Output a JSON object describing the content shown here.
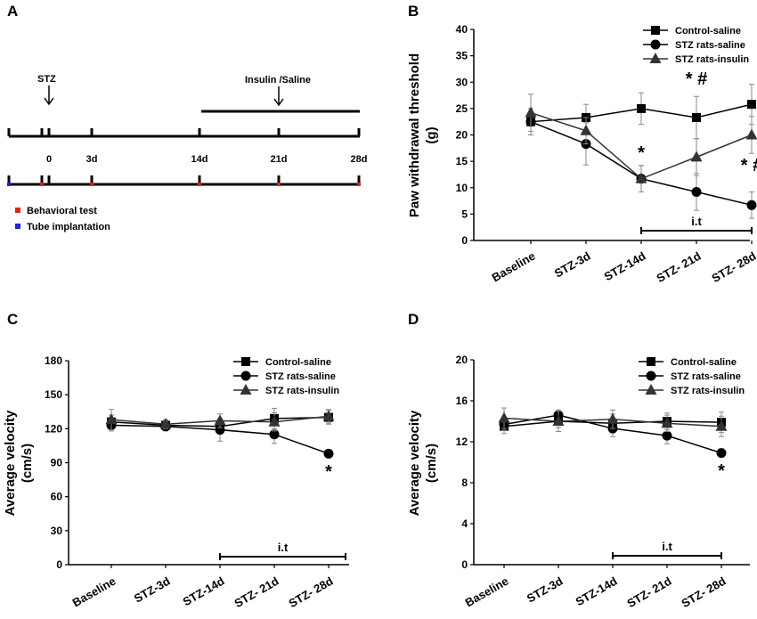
{
  "panels": {
    "A": {
      "letter": "A",
      "drug_label": "STZ",
      "treatment_label": "Insulin /Saline",
      "day_labels": [
        "0",
        "3d",
        "14d",
        "21d",
        "28d"
      ],
      "legend": [
        {
          "label": "Behavioral test",
          "color": "#e02020"
        },
        {
          "label": "Tube implantation",
          "color": "#2020e0"
        }
      ]
    },
    "B": {
      "letter": "B"
    },
    "C": {
      "letter": "C"
    },
    "D": {
      "letter": "D"
    }
  },
  "colors": {
    "series": "#000000",
    "insulin": "#333333",
    "errorbar": "#888888"
  },
  "chart_data": [
    {
      "id": "B",
      "type": "line",
      "ylabel": "Paw withdrawal threshold (g)",
      "ylabel_lines": [
        "Paw withdrawal threshold",
        "(g)"
      ],
      "ylim": [
        0,
        40
      ],
      "yticks": [
        0,
        5,
        10,
        15,
        20,
        25,
        30,
        35,
        40
      ],
      "categories": [
        "Baseline",
        "STZ-3d",
        "STZ-14d",
        "STZ- 21d",
        "STZ- 28d"
      ],
      "series": [
        {
          "name": "Control-saline",
          "marker": "square",
          "values": [
            22.5,
            23.3,
            25.0,
            23.3,
            25.8
          ],
          "errors": [
            2.5,
            2.5,
            3.0,
            4.0,
            3.8
          ]
        },
        {
          "name": "STZ rats-saline",
          "marker": "circle",
          "values": [
            22.5,
            18.3,
            11.7,
            9.2,
            6.7
          ],
          "errors": [
            2.5,
            4.0,
            2.5,
            3.5,
            2.5
          ]
        },
        {
          "name": "STZ rats-insulin",
          "marker": "triangle",
          "values": [
            24.2,
            20.8,
            11.7,
            15.8,
            20.0
          ],
          "errors": [
            3.5,
            2.5,
            2.5,
            3.5,
            3.5
          ]
        }
      ],
      "bracket_label": "i.t",
      "bracket_range": [
        "STZ-14d",
        "STZ- 28d"
      ],
      "annotations": [
        {
          "text": "*",
          "category": "STZ-14d",
          "y": 15.5
        },
        {
          "text": "* #",
          "category": "STZ- 21d",
          "y": 29.5
        },
        {
          "text": "* #",
          "category": "STZ- 28d",
          "y": 13.2
        }
      ]
    },
    {
      "id": "C",
      "type": "line",
      "ylabel": "Average velocity (cm/s)",
      "ylabel_lines": [
        "Average velocity",
        "(cm/s)"
      ],
      "ylim": [
        0,
        180
      ],
      "yticks": [
        0,
        30,
        60,
        90,
        120,
        150,
        180
      ],
      "categories": [
        "Baseline",
        "STZ-3d",
        "STZ-14d",
        "STZ- 21d",
        "STZ- 28d"
      ],
      "series": [
        {
          "name": "Control-saline",
          "marker": "square",
          "values": [
            126,
            123,
            122,
            129,
            130
          ],
          "errors": [
            6,
            4,
            6,
            9,
            6
          ]
        },
        {
          "name": "STZ rats-saline",
          "marker": "circle",
          "values": [
            123,
            122,
            119,
            115,
            98
          ],
          "errors": [
            5,
            4,
            10,
            8,
            3
          ]
        },
        {
          "name": "STZ rats-insulin",
          "marker": "triangle",
          "values": [
            128,
            124,
            127,
            126,
            131
          ],
          "errors": [
            9,
            4,
            6,
            8,
            6
          ]
        }
      ],
      "bracket_label": "i.t",
      "bracket_range": [
        "STZ-14d",
        "STZ- 28d"
      ],
      "annotations": [
        {
          "text": "*",
          "category": "STZ- 28d",
          "y": 77
        }
      ]
    },
    {
      "id": "D",
      "type": "line",
      "ylabel": "Average velocity (cm/s)",
      "ylabel_lines": [
        "Average velocity",
        "(cm/s)"
      ],
      "ylim": [
        0,
        20
      ],
      "yticks": [
        0,
        4,
        8,
        12,
        16,
        20
      ],
      "categories": [
        "Baseline",
        "STZ-3d",
        "STZ-14d",
        "STZ- 21d",
        "STZ- 28d"
      ],
      "series": [
        {
          "name": "Control-saline",
          "marker": "square",
          "values": [
            13.5,
            14.0,
            13.8,
            14.0,
            13.9
          ],
          "errors": [
            0.7,
            0.6,
            0.9,
            0.8,
            1.0
          ]
        },
        {
          "name": "STZ rats-saline",
          "marker": "circle",
          "values": [
            13.7,
            14.6,
            13.3,
            12.6,
            10.9
          ],
          "errors": [
            0.6,
            0.5,
            0.8,
            0.8,
            0.4
          ]
        },
        {
          "name": "STZ rats-insulin",
          "marker": "triangle",
          "values": [
            14.3,
            14.0,
            14.2,
            13.8,
            13.5
          ],
          "errors": [
            1.0,
            1.0,
            0.9,
            0.8,
            1.0
          ]
        }
      ],
      "bracket_label": "i.t",
      "bracket_range": [
        "STZ-14d",
        "STZ- 28d"
      ],
      "annotations": [
        {
          "text": "*",
          "category": "STZ- 28d",
          "y": 8.6
        }
      ]
    }
  ]
}
